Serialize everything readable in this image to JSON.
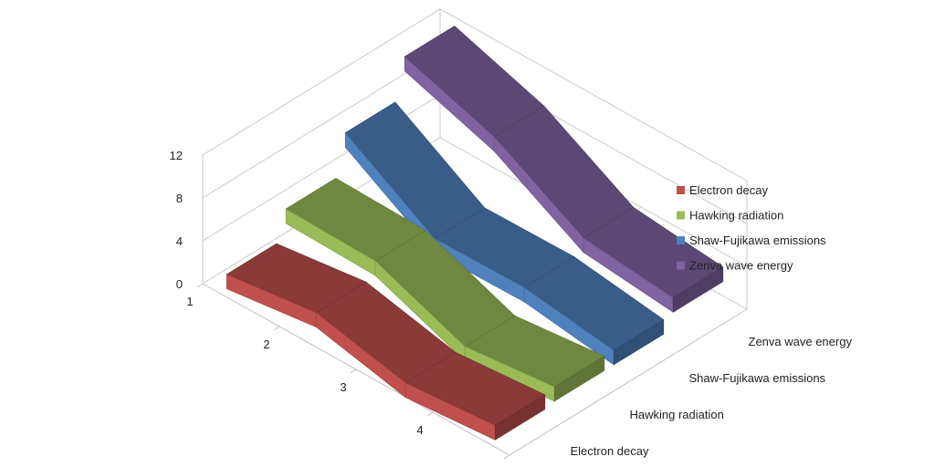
{
  "chart_data": {
    "type": "area",
    "subtype": "3d-ribbon",
    "title": "",
    "categories": [
      "1",
      "2",
      "3",
      "4"
    ],
    "yticks": [
      "0",
      "4",
      "8",
      "12"
    ],
    "ylim": [
      0,
      12
    ],
    "series": [
      {
        "name": "Electron decay",
        "values": [
          1.6,
          2.7,
          0.8,
          1.5
        ],
        "color": "#c0504d"
      },
      {
        "name": "Hawking radiation",
        "values": [
          4.3,
          4.1,
          0.8,
          1.7
        ],
        "color": "#9bbb59"
      },
      {
        "name": "Shaw-Fujikawa emissions",
        "values": [
          8.0,
          2.8,
          2.9,
          1.7
        ],
        "color": "#4f81bd"
      },
      {
        "name": "Zenva wave energy",
        "values": [
          11.7,
          8.9,
          4.1,
          3.2
        ],
        "color": "#8064a2"
      }
    ],
    "grid": true,
    "legend_position": "right"
  }
}
